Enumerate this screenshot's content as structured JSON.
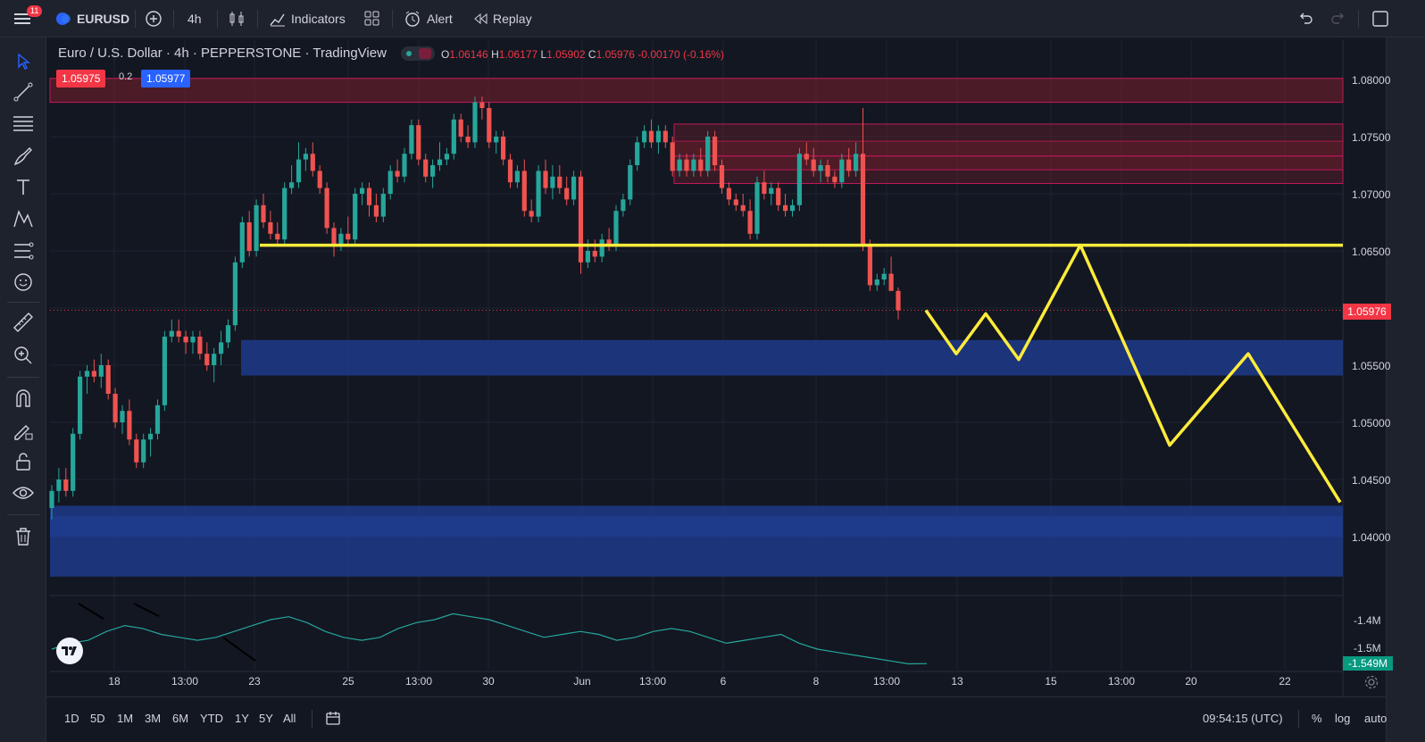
{
  "topbar": {
    "menu_badge": "11",
    "symbol": "EURUSD",
    "interval": "4h",
    "indicators_label": "Indicators",
    "alert_label": "Alert",
    "replay_label": "Replay"
  },
  "legend": {
    "title": "Euro / U.S. Dollar · 4h · PEPPERSTONE · TradingView",
    "ohlc": {
      "o_key": "O",
      "o": "1.06146",
      "h_key": "H",
      "h": "1.06177",
      "l_key": "L",
      "l": "1.05902",
      "c_key": "C",
      "c": "1.05976",
      "change": "-0.00170 (-0.16%)"
    },
    "sell_price": "1.05975",
    "spread": "0.2",
    "buy_price": "1.05977"
  },
  "price_axis": {
    "labels": [
      "1.08000",
      "1.07500",
      "1.07000",
      "1.06500",
      "1.05500",
      "1.05000",
      "1.04500",
      "1.04000"
    ],
    "current_price": "1.05976",
    "osc_labels": [
      "-1.4M",
      "-1.5M"
    ],
    "osc_current": "-1.549M"
  },
  "time_axis": {
    "labels": [
      "18",
      "13:00",
      "23",
      "25",
      "13:00",
      "30",
      "Jun",
      "13:00",
      "6",
      "8",
      "13:00",
      "13",
      "15",
      "13:00",
      "20",
      "22"
    ]
  },
  "bottombar": {
    "ranges": [
      "1D",
      "5D",
      "1M",
      "3M",
      "6M",
      "YTD",
      "1Y",
      "5Y",
      "All"
    ],
    "clock": "09:54:15 (UTC)",
    "percent": "%",
    "log": "log",
    "auto": "auto"
  },
  "colors": {
    "up": "#26a69a",
    "down": "#ef5350",
    "support_line": "#ffeb3b",
    "demand_zone": "#1e3a8a",
    "supply_zone": "#7a1f2b"
  },
  "chart_data": {
    "type": "candlestick",
    "symbol": "EURUSD",
    "interval": "4h",
    "ylim": [
      1.0355,
      1.0815
    ],
    "candles": [
      {
        "o": 1.0425,
        "h": 1.0445,
        "l": 1.0415,
        "c": 1.044
      },
      {
        "o": 1.044,
        "h": 1.046,
        "l": 1.043,
        "c": 1.045
      },
      {
        "o": 1.045,
        "h": 1.046,
        "l": 1.0435,
        "c": 1.044
      },
      {
        "o": 1.044,
        "h": 1.0495,
        "l": 1.0435,
        "c": 1.049
      },
      {
        "o": 1.049,
        "h": 1.0545,
        "l": 1.0485,
        "c": 1.054
      },
      {
        "o": 1.054,
        "h": 1.055,
        "l": 1.0525,
        "c": 1.0545
      },
      {
        "o": 1.0545,
        "h": 1.0555,
        "l": 1.0535,
        "c": 1.054
      },
      {
        "o": 1.054,
        "h": 1.056,
        "l": 1.053,
        "c": 1.055
      },
      {
        "o": 1.055,
        "h": 1.0555,
        "l": 1.052,
        "c": 1.0525
      },
      {
        "o": 1.0525,
        "h": 1.053,
        "l": 1.0495,
        "c": 1.05
      },
      {
        "o": 1.05,
        "h": 1.0515,
        "l": 1.049,
        "c": 1.051
      },
      {
        "o": 1.051,
        "h": 1.052,
        "l": 1.048,
        "c": 1.0485
      },
      {
        "o": 1.0485,
        "h": 1.049,
        "l": 1.046,
        "c": 1.0465
      },
      {
        "o": 1.0465,
        "h": 1.049,
        "l": 1.046,
        "c": 1.0485
      },
      {
        "o": 1.0485,
        "h": 1.0495,
        "l": 1.047,
        "c": 1.049
      },
      {
        "o": 1.049,
        "h": 1.052,
        "l": 1.0485,
        "c": 1.0515
      },
      {
        "o": 1.0515,
        "h": 1.058,
        "l": 1.051,
        "c": 1.0575
      },
      {
        "o": 1.0575,
        "h": 1.059,
        "l": 1.057,
        "c": 1.058
      },
      {
        "o": 1.058,
        "h": 1.059,
        "l": 1.057,
        "c": 1.0575
      },
      {
        "o": 1.0575,
        "h": 1.058,
        "l": 1.056,
        "c": 1.057
      },
      {
        "o": 1.057,
        "h": 1.058,
        "l": 1.056,
        "c": 1.0575
      },
      {
        "o": 1.0575,
        "h": 1.058,
        "l": 1.0555,
        "c": 1.056
      },
      {
        "o": 1.056,
        "h": 1.057,
        "l": 1.0545,
        "c": 1.055
      },
      {
        "o": 1.055,
        "h": 1.0565,
        "l": 1.0535,
        "c": 1.056
      },
      {
        "o": 1.056,
        "h": 1.058,
        "l": 1.055,
        "c": 1.057
      },
      {
        "o": 1.057,
        "h": 1.059,
        "l": 1.0565,
        "c": 1.0585
      },
      {
        "o": 1.0585,
        "h": 1.0645,
        "l": 1.058,
        "c": 1.064
      },
      {
        "o": 1.064,
        "h": 1.068,
        "l": 1.0635,
        "c": 1.0675
      },
      {
        "o": 1.0675,
        "h": 1.0685,
        "l": 1.0645,
        "c": 1.065
      },
      {
        "o": 1.065,
        "h": 1.0695,
        "l": 1.0645,
        "c": 1.069
      },
      {
        "o": 1.069,
        "h": 1.07,
        "l": 1.067,
        "c": 1.0675
      },
      {
        "o": 1.0675,
        "h": 1.0685,
        "l": 1.066,
        "c": 1.0665
      },
      {
        "o": 1.0665,
        "h": 1.0675,
        "l": 1.0655,
        "c": 1.066
      },
      {
        "o": 1.066,
        "h": 1.071,
        "l": 1.0655,
        "c": 1.0705
      },
      {
        "o": 1.0705,
        "h": 1.0725,
        "l": 1.07,
        "c": 1.071
      },
      {
        "o": 1.071,
        "h": 1.0745,
        "l": 1.0705,
        "c": 1.073
      },
      {
        "o": 1.073,
        "h": 1.074,
        "l": 1.072,
        "c": 1.0735
      },
      {
        "o": 1.0735,
        "h": 1.0745,
        "l": 1.0715,
        "c": 1.072
      },
      {
        "o": 1.072,
        "h": 1.0725,
        "l": 1.07,
        "c": 1.0705
      },
      {
        "o": 1.0705,
        "h": 1.071,
        "l": 1.0665,
        "c": 1.067
      },
      {
        "o": 1.067,
        "h": 1.0675,
        "l": 1.0645,
        "c": 1.0655
      },
      {
        "o": 1.0655,
        "h": 1.067,
        "l": 1.065,
        "c": 1.0665
      },
      {
        "o": 1.0665,
        "h": 1.068,
        "l": 1.0655,
        "c": 1.066
      },
      {
        "o": 1.066,
        "h": 1.0705,
        "l": 1.0655,
        "c": 1.07
      },
      {
        "o": 1.07,
        "h": 1.071,
        "l": 1.069,
        "c": 1.0705
      },
      {
        "o": 1.0705,
        "h": 1.071,
        "l": 1.068,
        "c": 1.069
      },
      {
        "o": 1.069,
        "h": 1.07,
        "l": 1.0675,
        "c": 1.068
      },
      {
        "o": 1.068,
        "h": 1.0705,
        "l": 1.0675,
        "c": 1.07
      },
      {
        "o": 1.07,
        "h": 1.0725,
        "l": 1.0695,
        "c": 1.072
      },
      {
        "o": 1.072,
        "h": 1.073,
        "l": 1.071,
        "c": 1.0715
      },
      {
        "o": 1.0715,
        "h": 1.074,
        "l": 1.071,
        "c": 1.0735
      },
      {
        "o": 1.0735,
        "h": 1.0765,
        "l": 1.073,
        "c": 1.076
      },
      {
        "o": 1.076,
        "h": 1.0765,
        "l": 1.0725,
        "c": 1.073
      },
      {
        "o": 1.073,
        "h": 1.0735,
        "l": 1.071,
        "c": 1.0715
      },
      {
        "o": 1.0715,
        "h": 1.073,
        "l": 1.0705,
        "c": 1.0725
      },
      {
        "o": 1.0725,
        "h": 1.0745,
        "l": 1.072,
        "c": 1.073
      },
      {
        "o": 1.073,
        "h": 1.074,
        "l": 1.0725,
        "c": 1.0735
      },
      {
        "o": 1.0735,
        "h": 1.077,
        "l": 1.073,
        "c": 1.0765
      },
      {
        "o": 1.0765,
        "h": 1.077,
        "l": 1.0745,
        "c": 1.075
      },
      {
        "o": 1.075,
        "h": 1.076,
        "l": 1.074,
        "c": 1.0745
      },
      {
        "o": 1.0745,
        "h": 1.0785,
        "l": 1.074,
        "c": 1.078
      },
      {
        "o": 1.078,
        "h": 1.0785,
        "l": 1.0765,
        "c": 1.0775
      },
      {
        "o": 1.0775,
        "h": 1.078,
        "l": 1.074,
        "c": 1.0745
      },
      {
        "o": 1.0745,
        "h": 1.0755,
        "l": 1.0735,
        "c": 1.075
      },
      {
        "o": 1.075,
        "h": 1.0755,
        "l": 1.0725,
        "c": 1.073
      },
      {
        "o": 1.073,
        "h": 1.0735,
        "l": 1.0705,
        "c": 1.071
      },
      {
        "o": 1.071,
        "h": 1.0725,
        "l": 1.0705,
        "c": 1.072
      },
      {
        "o": 1.072,
        "h": 1.073,
        "l": 1.068,
        "c": 1.0685
      },
      {
        "o": 1.0685,
        "h": 1.0695,
        "l": 1.0675,
        "c": 1.068
      },
      {
        "o": 1.068,
        "h": 1.0725,
        "l": 1.0675,
        "c": 1.072
      },
      {
        "o": 1.072,
        "h": 1.073,
        "l": 1.07,
        "c": 1.0705
      },
      {
        "o": 1.0705,
        "h": 1.0725,
        "l": 1.0695,
        "c": 1.0715
      },
      {
        "o": 1.0715,
        "h": 1.0725,
        "l": 1.07,
        "c": 1.0705
      },
      {
        "o": 1.0705,
        "h": 1.0715,
        "l": 1.069,
        "c": 1.0695
      },
      {
        "o": 1.0695,
        "h": 1.072,
        "l": 1.069,
        "c": 1.0715
      },
      {
        "o": 1.0715,
        "h": 1.072,
        "l": 1.063,
        "c": 1.064
      },
      {
        "o": 1.064,
        "h": 1.066,
        "l": 1.0635,
        "c": 1.065
      },
      {
        "o": 1.065,
        "h": 1.066,
        "l": 1.064,
        "c": 1.0645
      },
      {
        "o": 1.0645,
        "h": 1.0665,
        "l": 1.064,
        "c": 1.066
      },
      {
        "o": 1.066,
        "h": 1.067,
        "l": 1.065,
        "c": 1.0655
      },
      {
        "o": 1.0655,
        "h": 1.069,
        "l": 1.065,
        "c": 1.0685
      },
      {
        "o": 1.0685,
        "h": 1.07,
        "l": 1.068,
        "c": 1.0695
      },
      {
        "o": 1.0695,
        "h": 1.073,
        "l": 1.069,
        "c": 1.0725
      },
      {
        "o": 1.0725,
        "h": 1.075,
        "l": 1.072,
        "c": 1.0745
      },
      {
        "o": 1.0745,
        "h": 1.076,
        "l": 1.074,
        "c": 1.0755
      },
      {
        "o": 1.0755,
        "h": 1.0765,
        "l": 1.074,
        "c": 1.0745
      },
      {
        "o": 1.0745,
        "h": 1.076,
        "l": 1.0735,
        "c": 1.0755
      },
      {
        "o": 1.0755,
        "h": 1.076,
        "l": 1.074,
        "c": 1.0745
      },
      {
        "o": 1.0745,
        "h": 1.075,
        "l": 1.0715,
        "c": 1.072
      },
      {
        "o": 1.072,
        "h": 1.0735,
        "l": 1.0715,
        "c": 1.073
      },
      {
        "o": 1.073,
        "h": 1.0735,
        "l": 1.0715,
        "c": 1.072
      },
      {
        "o": 1.072,
        "h": 1.0735,
        "l": 1.0715,
        "c": 1.073
      },
      {
        "o": 1.073,
        "h": 1.074,
        "l": 1.0715,
        "c": 1.072
      },
      {
        "o": 1.072,
        "h": 1.0755,
        "l": 1.0715,
        "c": 1.075
      },
      {
        "o": 1.075,
        "h": 1.0755,
        "l": 1.072,
        "c": 1.0725
      },
      {
        "o": 1.0725,
        "h": 1.073,
        "l": 1.07,
        "c": 1.0705
      },
      {
        "o": 1.0705,
        "h": 1.071,
        "l": 1.069,
        "c": 1.0695
      },
      {
        "o": 1.0695,
        "h": 1.07,
        "l": 1.0685,
        "c": 1.069
      },
      {
        "o": 1.069,
        "h": 1.07,
        "l": 1.068,
        "c": 1.0685
      },
      {
        "o": 1.0685,
        "h": 1.0695,
        "l": 1.066,
        "c": 1.0665
      },
      {
        "o": 1.0665,
        "h": 1.0715,
        "l": 1.066,
        "c": 1.071
      },
      {
        "o": 1.071,
        "h": 1.072,
        "l": 1.0695,
        "c": 1.07
      },
      {
        "o": 1.07,
        "h": 1.071,
        "l": 1.069,
        "c": 1.0705
      },
      {
        "o": 1.0705,
        "h": 1.071,
        "l": 1.0685,
        "c": 1.069
      },
      {
        "o": 1.069,
        "h": 1.07,
        "l": 1.068,
        "c": 1.0685
      },
      {
        "o": 1.0685,
        "h": 1.0695,
        "l": 1.068,
        "c": 1.069
      },
      {
        "o": 1.069,
        "h": 1.074,
        "l": 1.0685,
        "c": 1.0735
      },
      {
        "o": 1.0735,
        "h": 1.0745,
        "l": 1.0725,
        "c": 1.073
      },
      {
        "o": 1.073,
        "h": 1.074,
        "l": 1.0715,
        "c": 1.072
      },
      {
        "o": 1.072,
        "h": 1.073,
        "l": 1.071,
        "c": 1.0725
      },
      {
        "o": 1.0725,
        "h": 1.073,
        "l": 1.071,
        "c": 1.0715
      },
      {
        "o": 1.0715,
        "h": 1.072,
        "l": 1.0705,
        "c": 1.071
      },
      {
        "o": 1.071,
        "h": 1.0735,
        "l": 1.0705,
        "c": 1.073
      },
      {
        "o": 1.073,
        "h": 1.074,
        "l": 1.0715,
        "c": 1.072
      },
      {
        "o": 1.072,
        "h": 1.0745,
        "l": 1.0715,
        "c": 1.0735
      },
      {
        "o": 1.0735,
        "h": 1.0775,
        "l": 1.065,
        "c": 1.0655
      },
      {
        "o": 1.0655,
        "h": 1.066,
        "l": 1.0615,
        "c": 1.062
      },
      {
        "o": 1.062,
        "h": 1.063,
        "l": 1.0615,
        "c": 1.0625
      },
      {
        "o": 1.0625,
        "h": 1.0635,
        "l": 1.062,
        "c": 1.063
      },
      {
        "o": 1.063,
        "h": 1.0645,
        "l": 1.0615,
        "c": 1.0615
      },
      {
        "o": 1.0615,
        "h": 1.0618,
        "l": 1.059,
        "c": 1.0598
      }
    ],
    "annotations": {
      "horizontal_line": 1.0655,
      "demand_zones": [
        [
          1.0541,
          1.0572
        ],
        [
          1.0365,
          1.04
        ],
        [
          1.04,
          1.0418
        ],
        [
          1.0418,
          1.0427
        ]
      ],
      "supply_zones": [
        [
          1.078,
          1.0801
        ],
        [
          1.0709,
          1.0733
        ],
        [
          1.0721,
          1.0746
        ],
        [
          1.0733,
          1.0761
        ]
      ],
      "projection_path": [
        1.0598,
        1.056,
        1.0595,
        1.0555,
        1.0655,
        1.048,
        1.056,
        1.043
      ]
    },
    "oscillator": {
      "current": -1.549,
      "values": [
        -1.5,
        -1.48,
        -1.47,
        -1.44,
        -1.42,
        -1.43,
        -1.45,
        -1.46,
        -1.47,
        -1.46,
        -1.44,
        -1.42,
        -1.4,
        -1.39,
        -1.41,
        -1.44,
        -1.46,
        -1.47,
        -1.46,
        -1.43,
        -1.41,
        -1.4,
        -1.38,
        -1.39,
        -1.4,
        -1.42,
        -1.44,
        -1.46,
        -1.45,
        -1.44,
        -1.45,
        -1.47,
        -1.46,
        -1.44,
        -1.43,
        -1.44,
        -1.46,
        -1.48,
        -1.47,
        -1.46,
        -1.45,
        -1.48,
        -1.5,
        -1.51,
        -1.52,
        -1.53,
        -1.54,
        -1.55,
        -1.549
      ]
    }
  }
}
